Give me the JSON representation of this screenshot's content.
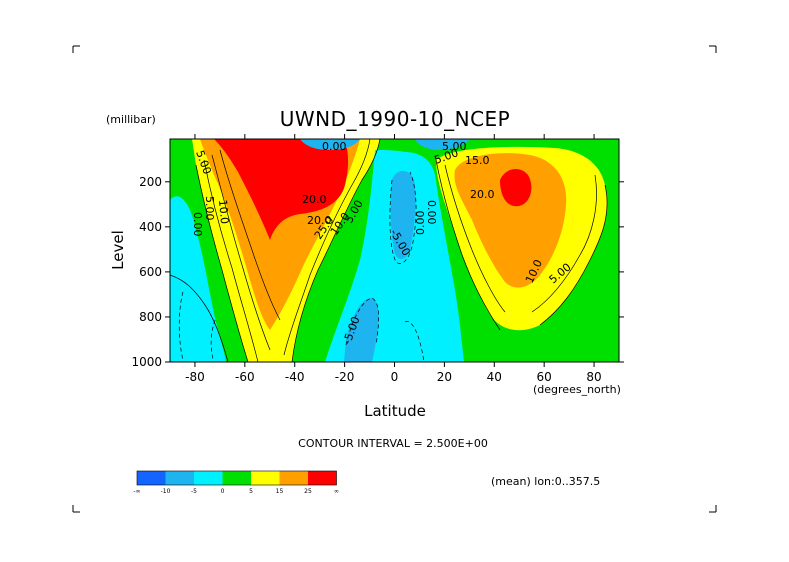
{
  "chart_data": {
    "type": "heatmap",
    "title": "UWND_1990-10_NCEP",
    "ylabel": "Level",
    "y_units": "(millibar)",
    "xlabel": "Latitude",
    "x_units": "(degrees_north)",
    "xlim": [
      -90,
      90
    ],
    "ylim": [
      1000,
      10
    ],
    "x_ticks": [
      "-80",
      "-60",
      "-40",
      "-20",
      "0",
      "20",
      "40",
      "60",
      "80"
    ],
    "x_tick_values": [
      -80,
      -60,
      -40,
      -20,
      0,
      20,
      40,
      60,
      80
    ],
    "y_ticks": [
      "200",
      "400",
      "600",
      "800",
      "1000"
    ],
    "y_tick_values": [
      200,
      400,
      600,
      800,
      1000
    ],
    "contour_interval_text": "CONTOUR INTERVAL = 2.500E+00",
    "mean_text": "(mean) lon:0..357.5",
    "colorbar": {
      "colors": [
        "#1464ff",
        "#1eb4f0",
        "#00f0ff",
        "#00e000",
        "#ffff00",
        "#ffa000",
        "#ff0000"
      ],
      "labels": [
        "-∞",
        "-10",
        "-5",
        "0",
        "5",
        "15",
        "25",
        "∞"
      ]
    },
    "contour_labels": [
      "5.00",
      "0.00",
      "5.00",
      "10.0",
      "20.0",
      "20.0",
      "25.0",
      "10.0",
      "5.00",
      "0.00",
      "5.00",
      "0.00",
      "5.00",
      "15.0",
      "20.0",
      "10.0",
      "5.00",
      "-5.00",
      "0.00",
      "-5.00"
    ],
    "grid": false
  }
}
